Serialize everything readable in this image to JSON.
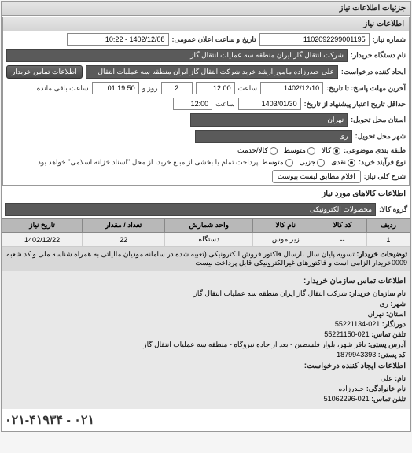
{
  "header": {
    "title": "جزئیات اطلاعات نیاز"
  },
  "need_info": {
    "panel_title": "اطلاعات نیاز",
    "number_label": "شماره نیاز:",
    "number": "1102092299001195",
    "datetime_label": "تاریخ و ساعت اعلان عمومی:",
    "datetime": "1402/12/08 - 10:22",
    "buyer_label": "نام دستگاه خریدار:",
    "buyer": "شرکت انتقال گاز ایران منطقه سه عملیات انتقال گاز",
    "creator_label": "ایجاد کننده درخواست:",
    "creator": "علی حیدرزاده مامور ارشد خرید شرکت انتقال گاز ایران منطقه سه عملیات انتقال",
    "contact_btn": "اطلاعات تماس خریدار",
    "deadline_label": "آخرین مهلت پاسخ: تا تاریخ:",
    "deadline_date": "1402/12/10",
    "time_label": "ساعت",
    "deadline_time": "12:00",
    "deadline_counter": "2",
    "days_label": "روز و",
    "deadline_remain": "01:19:50",
    "remain_label": "ساعت باقی مانده",
    "validity_label": "حداقل تاریخ اعتبار پیشنهاد از تاریخ:",
    "validity_date": "1403/01/30",
    "validity_time": "12:00",
    "province_label": "استان محل تحویل:",
    "province": "تهران",
    "city_label": "شهر محل تحویل:",
    "city": "ری",
    "category_label": "طبقه بندی موضوعی:",
    "cat_goods": "کالا",
    "cat_service": "خدمت",
    "cat_both": "کالا/خدمت",
    "cat_mid": "متوسط",
    "payment_label": "نوع فرآیند خرید:",
    "cash": "نقدی",
    "part": "جزیی",
    "mid": "متوسط",
    "payment_note": "پرداخت تمام یا بخشی از مبلغ خرید، از محل \"اسناد خزانه اسلامی\" خواهد بود.",
    "overall_label": "شرح کلی نیاز:",
    "overall_btn": "اقلام مطابق لیست پیوست"
  },
  "goods": {
    "title": "اطلاعات کالاهای مورد نیاز",
    "group_label": "گروه کالا:",
    "group": "محصولات الکترونیکی",
    "cols": {
      "row": "ردیف",
      "code": "کد کالا",
      "name": "نام کالا",
      "unit": "واحد شمارش",
      "qty": "تعداد / مقدار",
      "date": "تاریخ نیاز"
    },
    "rows": [
      {
        "row": "1",
        "code": "--",
        "name": "زیر موس",
        "unit": "دستگاه",
        "qty": "22",
        "date": "1402/12/22"
      }
    ],
    "note_label": "توضیحات خریدار:",
    "note": "تسویه پایان سال ،ارسال فاکتور فروش الکترونیکی (تعبیه شده در سامانه مودیان مالیاتی به همراه شناسه ملی و کد شعبه 0009خریدار الزامی است و فاکتورهای غیرالکترونیکی قابل پرداخت نیست"
  },
  "contact": {
    "title": "اطلاعات تماس سازمان خریدار:",
    "org_label": "نام سازمان خریدار:",
    "org": "شرکت انتقال گاز ایران منطقه سه عملیات انتقال گاز",
    "city_label": "شهر:",
    "city": "ری",
    "province_label": "استان:",
    "province": "تهران",
    "fax_label": "دورنگار:",
    "fax": "021-55221134",
    "phone_label": "تلفن تماس:",
    "phone": "021-55221150",
    "address_label": "آدرس پستی:",
    "address": "باقر شهر، بلوار فلسطین - بعد از جاده نیروگاه - منطقه سه عملیات انتقال گاز",
    "postal_label": "کد پستی:",
    "postal": "1879943393",
    "req_creator_title": "اطلاعات ایجاد کننده درخواست:",
    "name_label": "نام:",
    "name": "علی",
    "lastname_label": "نام خانوادگی:",
    "lastname": "حیدرزاده",
    "phone2_label": "تلفن تماس:",
    "phone2": "021-51062296"
  },
  "footer_phone": "۰۲۱-۴۱۹۳۴ - ۰۲۱"
}
